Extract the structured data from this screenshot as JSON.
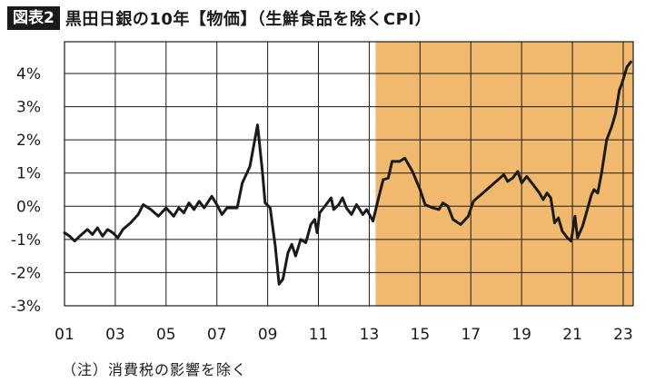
{
  "header": {
    "tag": "図表2",
    "title": "黒田日銀の10年【物価】（生鮮食品を除くCPI）"
  },
  "note": "（注）消費税の影響を除く",
  "colors": {
    "shade": "#f0b96e",
    "line": "#1a1a1a",
    "grid": "#1a1a1a"
  },
  "chart_data": {
    "type": "line",
    "title": "黒田日銀の10年【物価】（生鮮食品を除くCPI）",
    "xlabel": "",
    "ylabel": "",
    "xlim": [
      2001,
      2023.4
    ],
    "ylim": [
      -3,
      4.6
    ],
    "x_ticks": [
      2001,
      2003,
      2005,
      2007,
      2009,
      2011,
      2013,
      2015,
      2017,
      2019,
      2021,
      2023
    ],
    "x_tick_labels": [
      "01",
      "03",
      "05",
      "07",
      "09",
      "11",
      "13",
      "15",
      "17",
      "19",
      "21",
      "23"
    ],
    "y_ticks": [
      -3,
      -2,
      -1,
      0,
      1,
      2,
      3,
      4
    ],
    "y_tick_labels": [
      "-3%",
      "-2%",
      "-1%",
      "0%",
      "1%",
      "2%",
      "3%",
      "4%"
    ],
    "grid": true,
    "shaded_region": {
      "from": 2013.25,
      "to": 2023.4
    },
    "series": [
      {
        "values": [
          [
            2001.0,
            -0.8
          ],
          [
            2001.2,
            -0.9
          ],
          [
            2001.4,
            -1.05
          ],
          [
            2001.6,
            -0.9
          ],
          [
            2001.9,
            -0.7
          ],
          [
            2002.1,
            -0.85
          ],
          [
            2002.3,
            -0.65
          ],
          [
            2002.5,
            -0.9
          ],
          [
            2002.7,
            -0.7
          ],
          [
            2002.9,
            -0.8
          ],
          [
            2003.1,
            -0.95
          ],
          [
            2003.3,
            -0.7
          ],
          [
            2003.6,
            -0.5
          ],
          [
            2003.9,
            -0.25
          ],
          [
            2004.1,
            0.05
          ],
          [
            2004.4,
            -0.1
          ],
          [
            2004.7,
            -0.3
          ],
          [
            2005.0,
            -0.05
          ],
          [
            2005.3,
            -0.3
          ],
          [
            2005.5,
            -0.05
          ],
          [
            2005.7,
            -0.2
          ],
          [
            2005.9,
            0.1
          ],
          [
            2006.1,
            -0.1
          ],
          [
            2006.3,
            0.15
          ],
          [
            2006.5,
            -0.05
          ],
          [
            2006.8,
            0.3
          ],
          [
            2007.0,
            0.05
          ],
          [
            2007.2,
            -0.25
          ],
          [
            2007.4,
            -0.05
          ],
          [
            2007.8,
            -0.05
          ],
          [
            2008.0,
            0.7
          ],
          [
            2008.3,
            1.2
          ],
          [
            2008.6,
            2.45
          ],
          [
            2008.8,
            1.0
          ],
          [
            2008.9,
            0.1
          ],
          [
            2009.1,
            -0.05
          ],
          [
            2009.3,
            -1.2
          ],
          [
            2009.45,
            -2.35
          ],
          [
            2009.6,
            -2.2
          ],
          [
            2009.8,
            -1.4
          ],
          [
            2009.95,
            -1.15
          ],
          [
            2010.1,
            -1.5
          ],
          [
            2010.3,
            -1.0
          ],
          [
            2010.5,
            -1.1
          ],
          [
            2010.7,
            -0.55
          ],
          [
            2010.85,
            -0.4
          ],
          [
            2010.95,
            -0.8
          ],
          [
            2011.05,
            -0.2
          ],
          [
            2011.3,
            0.05
          ],
          [
            2011.5,
            0.25
          ],
          [
            2011.6,
            -0.1
          ],
          [
            2011.8,
            0.05
          ],
          [
            2011.95,
            0.25
          ],
          [
            2012.1,
            -0.05
          ],
          [
            2012.3,
            -0.25
          ],
          [
            2012.5,
            0.05
          ],
          [
            2012.75,
            -0.25
          ],
          [
            2012.9,
            -0.1
          ],
          [
            2013.15,
            -0.45
          ],
          [
            2013.35,
            0.2
          ],
          [
            2013.55,
            0.8
          ],
          [
            2013.75,
            0.85
          ],
          [
            2013.9,
            1.35
          ],
          [
            2014.2,
            1.35
          ],
          [
            2014.4,
            1.45
          ],
          [
            2014.7,
            1.05
          ],
          [
            2015.0,
            0.5
          ],
          [
            2015.2,
            0.05
          ],
          [
            2015.5,
            -0.05
          ],
          [
            2015.75,
            -0.1
          ],
          [
            2015.9,
            0.1
          ],
          [
            2016.1,
            0.0
          ],
          [
            2016.3,
            -0.4
          ],
          [
            2016.6,
            -0.55
          ],
          [
            2016.9,
            -0.3
          ],
          [
            2017.1,
            0.15
          ],
          [
            2017.4,
            0.35
          ],
          [
            2017.7,
            0.55
          ],
          [
            2018.0,
            0.75
          ],
          [
            2018.3,
            0.95
          ],
          [
            2018.45,
            0.75
          ],
          [
            2018.65,
            0.85
          ],
          [
            2018.85,
            1.05
          ],
          [
            2019.0,
            0.7
          ],
          [
            2019.2,
            0.9
          ],
          [
            2019.5,
            0.6
          ],
          [
            2019.7,
            0.4
          ],
          [
            2019.85,
            0.2
          ],
          [
            2020.0,
            0.4
          ],
          [
            2020.15,
            0.25
          ],
          [
            2020.3,
            -0.5
          ],
          [
            2020.45,
            -0.35
          ],
          [
            2020.6,
            -0.75
          ],
          [
            2020.8,
            -0.95
          ],
          [
            2020.95,
            -1.05
          ],
          [
            2021.1,
            -0.3
          ],
          [
            2021.2,
            -0.95
          ],
          [
            2021.4,
            -0.6
          ],
          [
            2021.55,
            -0.2
          ],
          [
            2021.75,
            0.35
          ],
          [
            2021.85,
            0.5
          ],
          [
            2022.0,
            0.4
          ],
          [
            2022.15,
            1.0
          ],
          [
            2022.35,
            2.0
          ],
          [
            2022.55,
            2.4
          ],
          [
            2022.7,
            2.8
          ],
          [
            2022.85,
            3.5
          ],
          [
            2022.95,
            3.7
          ],
          [
            2023.15,
            4.2
          ],
          [
            2023.3,
            4.35
          ]
        ]
      }
    ]
  }
}
